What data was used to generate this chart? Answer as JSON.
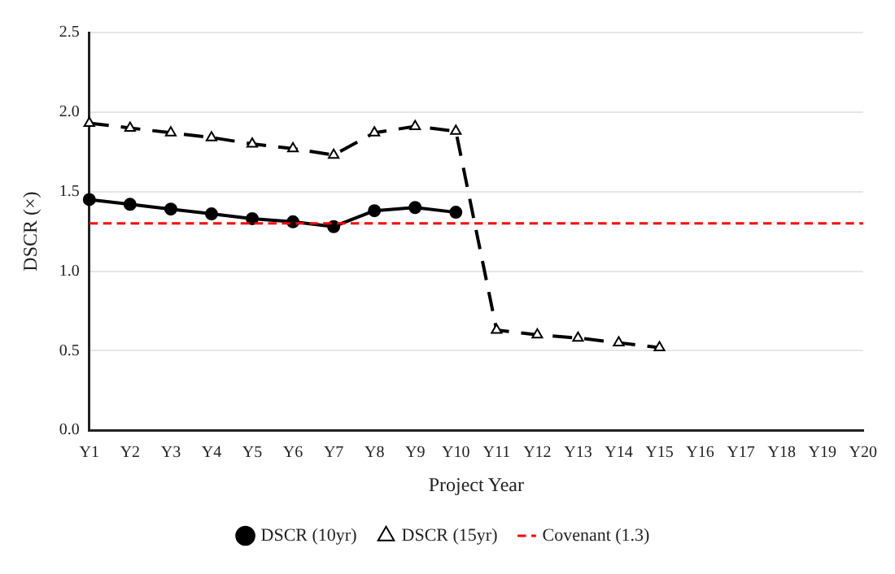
{
  "chart_data": {
    "type": "line",
    "xlabel": "Project Year",
    "ylabel": "DSCR (×)",
    "categories": [
      "Y1",
      "Y2",
      "Y3",
      "Y4",
      "Y5",
      "Y6",
      "Y7",
      "Y8",
      "Y9",
      "Y10",
      "Y11",
      "Y12",
      "Y13",
      "Y14",
      "Y15",
      "Y16",
      "Y17",
      "Y18",
      "Y19",
      "Y20"
    ],
    "series": [
      {
        "name": "DSCR (10yr)",
        "color": "#000000",
        "marker": "circle",
        "line_style": "solid",
        "values": [
          1.45,
          1.42,
          1.39,
          1.36,
          1.33,
          1.31,
          1.28,
          1.38,
          1.4,
          1.37,
          null,
          null,
          null,
          null,
          null,
          null,
          null,
          null,
          null,
          null
        ]
      },
      {
        "name": "DSCR (15yr)",
        "color": "#000000",
        "marker": "triangle",
        "line_style": "dashed",
        "values": [
          1.93,
          1.9,
          1.87,
          1.84,
          1.8,
          1.77,
          1.73,
          1.87,
          1.91,
          1.88,
          0.63,
          0.6,
          0.58,
          0.55,
          0.52,
          null,
          null,
          null,
          null,
          null
        ]
      }
    ],
    "ref_lines": [
      {
        "axis": "y",
        "value": 1.3,
        "label": "Covenant (1.3)",
        "color": "#ff0000",
        "line_style": "dashed"
      }
    ],
    "ylim": [
      0,
      2.5
    ],
    "yticks": [
      {
        "value": 0,
        "label": "0.0"
      },
      0.5,
      {
        "value": 1,
        "label": "1.0"
      },
      1.5,
      {
        "value": 2,
        "label": "2.0"
      },
      2.5
    ],
    "grid": "y",
    "legend": "bottom"
  }
}
